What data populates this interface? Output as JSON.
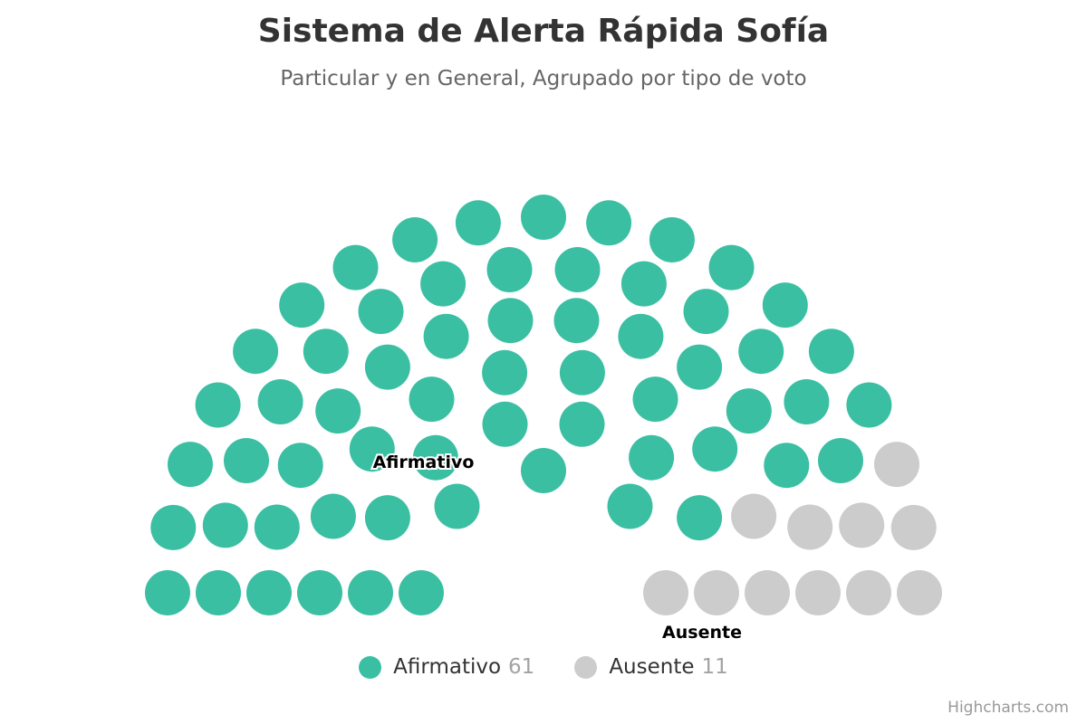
{
  "chart_data": {
    "type": "item",
    "title": "Sistema de Alerta Rápida Sofía",
    "subtitle": "Particular y en General, Agrupado por tipo de voto",
    "series": [
      {
        "name": "Afirmativo",
        "value": 61,
        "color": "#3bbfa3"
      },
      {
        "name": "Ausente",
        "value": 11,
        "color": "#cccccc"
      }
    ],
    "total_seats": 72,
    "rows": 6,
    "legend_position": "bottom-center",
    "data_labels": [
      "Afirmativo",
      "Ausente"
    ]
  },
  "legend": {
    "items": [
      {
        "label": "Afirmativo",
        "count": "61",
        "color": "#3bbfa3"
      },
      {
        "label": "Ausente",
        "count": "11",
        "color": "#cccccc"
      }
    ]
  },
  "credits": "Highcharts.com"
}
